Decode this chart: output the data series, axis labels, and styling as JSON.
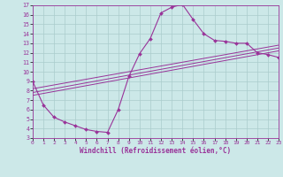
{
  "xlabel": "Windchill (Refroidissement éolien,°C)",
  "bg_color": "#cce8e8",
  "line_color": "#993399",
  "grid_color": "#aacccc",
  "x_major": [
    0,
    1,
    2,
    3,
    4,
    5,
    6,
    7,
    8,
    9,
    10,
    11,
    12,
    13,
    14,
    15,
    16,
    17,
    18,
    19,
    20,
    21,
    22,
    23
  ],
  "y_major": [
    3,
    4,
    5,
    6,
    7,
    8,
    9,
    10,
    11,
    12,
    13,
    14,
    15,
    16,
    17
  ],
  "ylim": [
    3,
    17
  ],
  "xlim": [
    0,
    23
  ],
  "curve1_x": [
    0,
    1,
    2,
    3,
    4,
    5,
    6,
    7,
    8,
    9,
    10,
    11,
    12,
    13,
    14,
    15,
    16,
    17,
    18,
    19,
    20,
    21,
    22,
    23
  ],
  "curve1_y": [
    9.0,
    6.5,
    5.2,
    4.7,
    4.3,
    3.9,
    3.7,
    3.6,
    6.0,
    9.5,
    11.9,
    13.5,
    16.2,
    16.8,
    17.1,
    15.5,
    14.0,
    13.3,
    13.2,
    13.0,
    13.0,
    12.0,
    11.8,
    11.5
  ],
  "line1_x": [
    0,
    23
  ],
  "line1_y": [
    7.5,
    12.2
  ],
  "line2_x": [
    0,
    23
  ],
  "line2_y": [
    7.8,
    12.5
  ],
  "line3_x": [
    0,
    23
  ],
  "line3_y": [
    8.2,
    12.8
  ]
}
